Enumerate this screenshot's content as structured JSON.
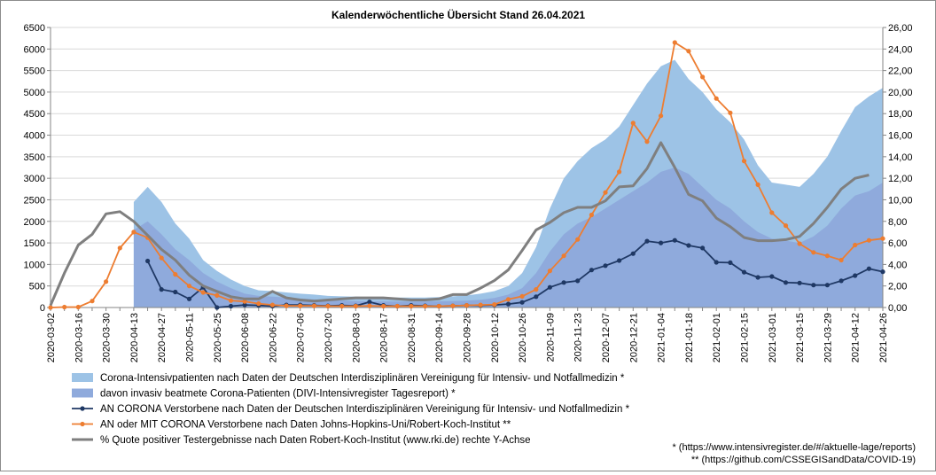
{
  "chart_data": {
    "type": "area",
    "title": "Kalenderwöchentliche Übersicht Stand 26.04.2021",
    "x": [
      "2020-03-02",
      "2020-03-09",
      "2020-03-16",
      "2020-03-23",
      "2020-03-30",
      "2020-04-06",
      "2020-04-13",
      "2020-04-20",
      "2020-04-27",
      "2020-05-04",
      "2020-05-11",
      "2020-05-18",
      "2020-05-25",
      "2020-06-01",
      "2020-06-08",
      "2020-06-15",
      "2020-06-22",
      "2020-06-29",
      "2020-07-06",
      "2020-07-13",
      "2020-07-20",
      "2020-07-27",
      "2020-08-03",
      "2020-08-10",
      "2020-08-17",
      "2020-08-24",
      "2020-08-31",
      "2020-09-07",
      "2020-09-14",
      "2020-09-21",
      "2020-09-28",
      "2020-10-05",
      "2020-10-12",
      "2020-10-19",
      "2020-10-26",
      "2020-11-02",
      "2020-11-09",
      "2020-11-16",
      "2020-11-23",
      "2020-11-30",
      "2020-12-07",
      "2020-12-14",
      "2020-12-21",
      "2020-12-28",
      "2021-01-04",
      "2021-01-11",
      "2021-01-18",
      "2021-01-25",
      "2021-02-01",
      "2021-02-08",
      "2021-02-15",
      "2021-02-22",
      "2021-03-01",
      "2021-03-08",
      "2021-03-15",
      "2021-03-22",
      "2021-03-29",
      "2021-04-05",
      "2021-04-12",
      "2021-04-19",
      "2021-04-26"
    ],
    "tick_labels": [
      "2020-03-02",
      "2020-03-16",
      "2020-03-30",
      "2020-04-13",
      "2020-04-27",
      "2020-05-11",
      "2020-05-25",
      "2020-06-08",
      "2020-06-22",
      "2020-07-06",
      "2020-07-20",
      "2020-08-03",
      "2020-08-17",
      "2020-08-31",
      "2020-09-14",
      "2020-09-28",
      "2020-10-12",
      "2020-10-26",
      "2020-11-09",
      "2020-11-23",
      "2020-12-07",
      "2020-12-21",
      "2021-01-04",
      "2021-01-18",
      "2021-02-01",
      "2021-02-15",
      "2021-03-01",
      "2021-03-15",
      "2021-03-29",
      "2021-04-12",
      "2021-04-26"
    ],
    "ylim": [
      0,
      6500
    ],
    "y_ticks": [
      "0",
      "500",
      "1000",
      "1500",
      "2000",
      "2500",
      "3000",
      "3500",
      "4000",
      "4500",
      "5000",
      "5500",
      "6000",
      "6500"
    ],
    "y2lim": [
      0,
      26
    ],
    "y2_ticks": [
      "0,00",
      "2,00",
      "4,00",
      "6,00",
      "8,00",
      "10,00",
      "12,00",
      "14,00",
      "16,00",
      "18,00",
      "20,00",
      "22,00",
      "24,00",
      "26,00"
    ],
    "series": [
      {
        "name": "Corona-Intensivpatienten nach Daten der Deutschen Interdisziplinären Vereinigung für Intensiv- und Notfallmedizin *",
        "kind": "area",
        "axis": "left",
        "color": "#9dc3e6",
        "values": [
          null,
          null,
          null,
          null,
          null,
          null,
          2450,
          2800,
          2450,
          1950,
          1600,
          1100,
          850,
          650,
          500,
          400,
          380,
          350,
          320,
          300,
          270,
          260,
          250,
          240,
          235,
          230,
          230,
          230,
          240,
          260,
          280,
          320,
          380,
          500,
          800,
          1400,
          2300,
          3000,
          3400,
          3700,
          3900,
          4200,
          4700,
          5200,
          5600,
          5750,
          5300,
          5000,
          4600,
          4300,
          3900,
          3300,
          2900,
          2850,
          2800,
          3100,
          3500,
          4100,
          4650,
          4900,
          5100
        ]
      },
      {
        "name": "davon invasiv beatmete Corona-Patienten (DIVI-Intensivregister Tagesreport)  *",
        "kind": "area",
        "axis": "left",
        "color": "#8faadc",
        "values": [
          null,
          null,
          null,
          null,
          null,
          null,
          1800,
          2000,
          1700,
          1350,
          1100,
          800,
          600,
          450,
          320,
          270,
          250,
          230,
          210,
          190,
          170,
          160,
          150,
          145,
          140,
          140,
          140,
          140,
          145,
          150,
          160,
          180,
          220,
          300,
          450,
          800,
          1300,
          1700,
          1950,
          2100,
          2300,
          2500,
          2700,
          2900,
          3150,
          3250,
          3100,
          2800,
          2500,
          2300,
          2000,
          1750,
          1600,
          1550,
          1500,
          1650,
          1900,
          2300,
          2600,
          2700,
          2900
        ]
      },
      {
        "name": "AN CORONA Verstorbene nach Daten der Deutschen Interdisziplinären Vereinigung für Intensiv- und Notfallmedizin *",
        "kind": "line",
        "axis": "left",
        "color": "#1f3864",
        "values": [
          null,
          null,
          null,
          null,
          null,
          null,
          null,
          1080,
          420,
          360,
          200,
          470,
          0,
          30,
          60,
          50,
          30,
          60,
          60,
          50,
          40,
          50,
          40,
          130,
          50,
          30,
          50,
          40,
          30,
          40,
          50,
          50,
          60,
          80,
          120,
          250,
          470,
          580,
          620,
          870,
          970,
          1090,
          1250,
          1540,
          1500,
          1560,
          1440,
          1380,
          1050,
          1040,
          820,
          700,
          720,
          580,
          570,
          520,
          520,
          620,
          740,
          900,
          830
        ]
      },
      {
        "name": "AN oder MIT CORONA Verstorbene nach Daten Johns-Hopkins-Uni/Robert-Koch-Institut **",
        "kind": "line",
        "axis": "left",
        "color": "#ed7d31",
        "values": [
          0,
          10,
          10,
          150,
          600,
          1380,
          1750,
          1620,
          1150,
          770,
          500,
          350,
          280,
          160,
          140,
          90,
          60,
          40,
          40,
          40,
          30,
          30,
          30,
          40,
          30,
          30,
          30,
          30,
          30,
          40,
          50,
          60,
          70,
          190,
          260,
          420,
          850,
          1200,
          1580,
          2150,
          2670,
          3150,
          4280,
          3850,
          4450,
          6150,
          5950,
          5350,
          4850,
          4520,
          3400,
          2850,
          2200,
          1900,
          1480,
          1280,
          1200,
          1100,
          1450,
          1560,
          1600
        ]
      },
      {
        "name": "% Quote positiver Testergebnisse nach Daten Robert-Koch-Institut (www.rki.de) rechte Y-Achse",
        "kind": "line",
        "axis": "right",
        "color": "#7f7f7f",
        "values": [
          0.2,
          3.2,
          5.8,
          6.8,
          8.7,
          8.9,
          8.0,
          6.7,
          5.4,
          4.4,
          3.0,
          2.0,
          1.5,
          1.0,
          0.8,
          0.8,
          1.5,
          0.9,
          0.7,
          0.6,
          0.7,
          0.8,
          0.9,
          0.9,
          0.9,
          0.8,
          0.7,
          0.7,
          0.8,
          1.2,
          1.2,
          1.8,
          2.5,
          3.5,
          5.3,
          7.2,
          7.9,
          8.8,
          9.3,
          9.3,
          9.9,
          11.2,
          11.3,
          12.9,
          15.3,
          13.0,
          10.5,
          9.9,
          8.3,
          7.5,
          6.5,
          6.2,
          6.2,
          6.3,
          6.6,
          7.8,
          9.3,
          11.0,
          12.0,
          12.3,
          null
        ]
      }
    ],
    "legend_placement": "bottom-center"
  },
  "footnotes": {
    "note1": "*  (https://www.intensivregister.de/#/aktuelle-lage/reports)",
    "note2": "**  (https://github.com/CSSEGISandData/COVID-19)"
  }
}
